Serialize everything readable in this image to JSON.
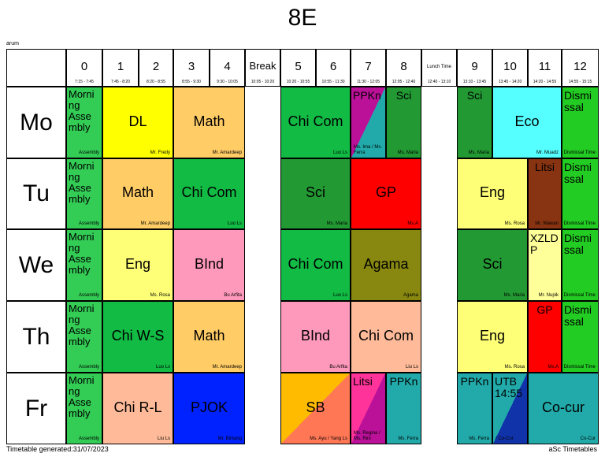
{
  "title": "8E",
  "top_left_label": "arum",
  "footer_left": "Timetable generated:31/07/2023",
  "footer_right": "aSc Timetables",
  "header": [
    {
      "num": "0",
      "time": "7:15 - 7:45"
    },
    {
      "num": "1",
      "time": "7:45 - 8:20"
    },
    {
      "num": "2",
      "time": "8:20 - 8:55"
    },
    {
      "num": "3",
      "time": "8:55 - 9:30"
    },
    {
      "num": "4",
      "time": "9:30 - 10:05"
    },
    {
      "num": "Break",
      "time": "10:05 - 10:20"
    },
    {
      "num": "5",
      "time": "10:20 - 10:55"
    },
    {
      "num": "6",
      "time": "10:55 - 11:30"
    },
    {
      "num": "7",
      "time": "11:30 - 12:05"
    },
    {
      "num": "8",
      "time": "12:05 - 12:40"
    },
    {
      "num": "Lunch Time",
      "time": "12:40 - 13:10"
    },
    {
      "num": "9",
      "time": "13:10 - 13:45"
    },
    {
      "num": "10",
      "time": "13:45 - 14:20"
    },
    {
      "num": "11",
      "time": "14:20 - 14:55"
    },
    {
      "num": "12",
      "time": "14:55 - 15:15"
    }
  ],
  "days": [
    "Mo",
    "Tu",
    "We",
    "Th",
    "Fr"
  ],
  "colors": {
    "morning": "#33cc55",
    "yellow": "#ffff00",
    "orange": "#ffcc66",
    "green": "#11bb44",
    "darkgreen": "#229933",
    "cyan": "#55ffff",
    "purple": "#bb1199",
    "teal": "#22aaaa",
    "paleyellow": "#ffff77",
    "red": "#ff0000",
    "brown": "#883311",
    "olive": "#888811",
    "pink": "#ff99bb",
    "lightyellow": "#ffff99",
    "salmon": "#ffbb99",
    "blue": "#0022ff",
    "gold": "#ffbb00",
    "coral": "#ff7755",
    "magenta": "#ff3399",
    "navy": "#1133aa",
    "dismissal": "#22cc22"
  },
  "lessons": [
    {
      "day": 0,
      "start": 0,
      "span": 1,
      "subject": "Morni ng Asse mbly",
      "teacher": "Assembly",
      "color": "morning",
      "type": "morning"
    },
    {
      "day": 0,
      "start": 1,
      "span": 2,
      "subject": "DL",
      "teacher": "Mr. Fredy",
      "color": "yellow"
    },
    {
      "day": 0,
      "start": 3,
      "span": 2,
      "subject": "Math",
      "teacher": "Mr. Amardeep",
      "color": "orange"
    },
    {
      "day": 0,
      "start": 6,
      "span": 2,
      "subject": "Chi Com",
      "teacher": "Luo Ls",
      "color": "green"
    },
    {
      "day": 0,
      "start": 8,
      "span": 1,
      "subject": "PPKn",
      "teacher": "Ms. Ima / Ms. Ferra",
      "color": "purple",
      "color2": "teal",
      "type": "split"
    },
    {
      "day": 0,
      "start": 9,
      "span": 1,
      "subject": "Sci",
      "teacher": "Ms. Maria",
      "color": "darkgreen",
      "type": "top"
    },
    {
      "day": 0,
      "start": 11,
      "span": 1,
      "subject": "Sci",
      "teacher": "Ms. Maria",
      "color": "darkgreen",
      "type": "top"
    },
    {
      "day": 0,
      "start": 12,
      "span": 2,
      "subject": "Eco",
      "teacher": "Mr. Muadz",
      "color": "cyan"
    },
    {
      "day": 0,
      "start": 14,
      "span": 1,
      "subject": "Dismi ssal",
      "teacher": "Dismissal Time",
      "color": "dismissal",
      "type": "top"
    },
    {
      "day": 1,
      "start": 0,
      "span": 1,
      "subject": "Morni ng Asse mbly",
      "teacher": "Assembly",
      "color": "morning",
      "type": "morning"
    },
    {
      "day": 1,
      "start": 1,
      "span": 2,
      "subject": "Math",
      "teacher": "Mr. Amardeep",
      "color": "orange"
    },
    {
      "day": 1,
      "start": 3,
      "span": 2,
      "subject": "Chi Com",
      "teacher": "Luo Ls",
      "color": "green"
    },
    {
      "day": 1,
      "start": 6,
      "span": 2,
      "subject": "Sci",
      "teacher": "Ms. Maria",
      "color": "darkgreen"
    },
    {
      "day": 1,
      "start": 8,
      "span": 2,
      "subject": "GP",
      "teacher": "Ms.A",
      "color": "red"
    },
    {
      "day": 1,
      "start": 11,
      "span": 2,
      "subject": "Eng",
      "teacher": "Ms. Rosa",
      "color": "paleyellow"
    },
    {
      "day": 1,
      "start": 13,
      "span": 1,
      "subject": "Litsi",
      "teacher": "Mr. Wawan",
      "color": "brown",
      "type": "top"
    },
    {
      "day": 1,
      "start": 14,
      "span": 1,
      "subject": "Dismi ssal",
      "teacher": "Dismissal Time",
      "color": "dismissal",
      "type": "top"
    },
    {
      "day": 2,
      "start": 0,
      "span": 1,
      "subject": "Morni ng Asse mbly",
      "teacher": "Assembly",
      "color": "morning",
      "type": "morning"
    },
    {
      "day": 2,
      "start": 1,
      "span": 2,
      "subject": "Eng",
      "teacher": "Ms. Rosa",
      "color": "paleyellow"
    },
    {
      "day": 2,
      "start": 3,
      "span": 2,
      "subject": "BInd",
      "teacher": "Bu Arfita",
      "color": "pink"
    },
    {
      "day": 2,
      "start": 6,
      "span": 2,
      "subject": "Chi Com",
      "teacher": "Luo Ls",
      "color": "green"
    },
    {
      "day": 2,
      "start": 8,
      "span": 2,
      "subject": "Agama",
      "teacher": "Agama",
      "color": "olive"
    },
    {
      "day": 2,
      "start": 11,
      "span": 2,
      "subject": "Sci",
      "teacher": "Ms. Maria",
      "color": "darkgreen"
    },
    {
      "day": 2,
      "start": 13,
      "span": 1,
      "subject": "XZLD P",
      "teacher": "Mr. Nupik",
      "color": "lightyellow",
      "type": "top"
    },
    {
      "day": 2,
      "start": 14,
      "span": 1,
      "subject": "Dismi ssal",
      "teacher": "Dismissal Time",
      "color": "dismissal",
      "type": "top"
    },
    {
      "day": 3,
      "start": 0,
      "span": 1,
      "subject": "Morni ng Asse mbly",
      "teacher": "Assembly",
      "color": "morning",
      "type": "morning"
    },
    {
      "day": 3,
      "start": 1,
      "span": 2,
      "subject": "Chi W-S",
      "teacher": "Luo Ls",
      "color": "green"
    },
    {
      "day": 3,
      "start": 3,
      "span": 2,
      "subject": "Math",
      "teacher": "Mr. Amardeep",
      "color": "orange"
    },
    {
      "day": 3,
      "start": 6,
      "span": 2,
      "subject": "BInd",
      "teacher": "Bu Arfita",
      "color": "pink"
    },
    {
      "day": 3,
      "start": 8,
      "span": 2,
      "subject": "Chi Com",
      "teacher": "Liu Ls",
      "color": "salmon"
    },
    {
      "day": 3,
      "start": 11,
      "span": 2,
      "subject": "Eng",
      "teacher": "Ms. Rosa",
      "color": "paleyellow"
    },
    {
      "day": 3,
      "start": 13,
      "span": 1,
      "subject": "GP",
      "teacher": "Ms.A",
      "color": "red",
      "type": "top"
    },
    {
      "day": 3,
      "start": 14,
      "span": 1,
      "subject": "Dismi ssal",
      "teacher": "Dismissal Time",
      "color": "dismissal",
      "type": "top"
    },
    {
      "day": 4,
      "start": 0,
      "span": 1,
      "subject": "Morni ng Asse mbly",
      "teacher": "Assembly",
      "color": "morning",
      "type": "morning"
    },
    {
      "day": 4,
      "start": 1,
      "span": 2,
      "subject": "Chi R-L",
      "teacher": "Liu Ls",
      "color": "salmon"
    },
    {
      "day": 4,
      "start": 3,
      "span": 2,
      "subject": "PJOK",
      "teacher": "Mr. Bintang",
      "color": "blue"
    },
    {
      "day": 4,
      "start": 6,
      "span": 2,
      "subject": "SB",
      "teacher": "Ms. Ayu / Yang Ls",
      "color": "gold",
      "color2": "coral",
      "type": "split"
    },
    {
      "day": 4,
      "start": 8,
      "span": 1,
      "subject": "Litsi",
      "teacher": "Ms. Regina / Ms. Rini",
      "color": "magenta",
      "color2": "purple",
      "type": "split"
    },
    {
      "day": 4,
      "start": 9,
      "span": 1,
      "subject": "PPKn",
      "teacher": "Ms. Ferra",
      "color": "teal",
      "type": "top"
    },
    {
      "day": 4,
      "start": 11,
      "span": 1,
      "subject": "PPKn",
      "teacher": "Ms. Ferra",
      "color": "teal",
      "type": "top"
    },
    {
      "day": 4,
      "start": 12,
      "span": 1,
      "subject": "UTB 14:55",
      "teacher": "/ Co-Cur",
      "color": "teal",
      "color2": "navy",
      "type": "split"
    },
    {
      "day": 4,
      "start": 13,
      "span": 2,
      "subject": "Co-cur",
      "teacher": "Co-Cur",
      "color": "teal"
    }
  ]
}
